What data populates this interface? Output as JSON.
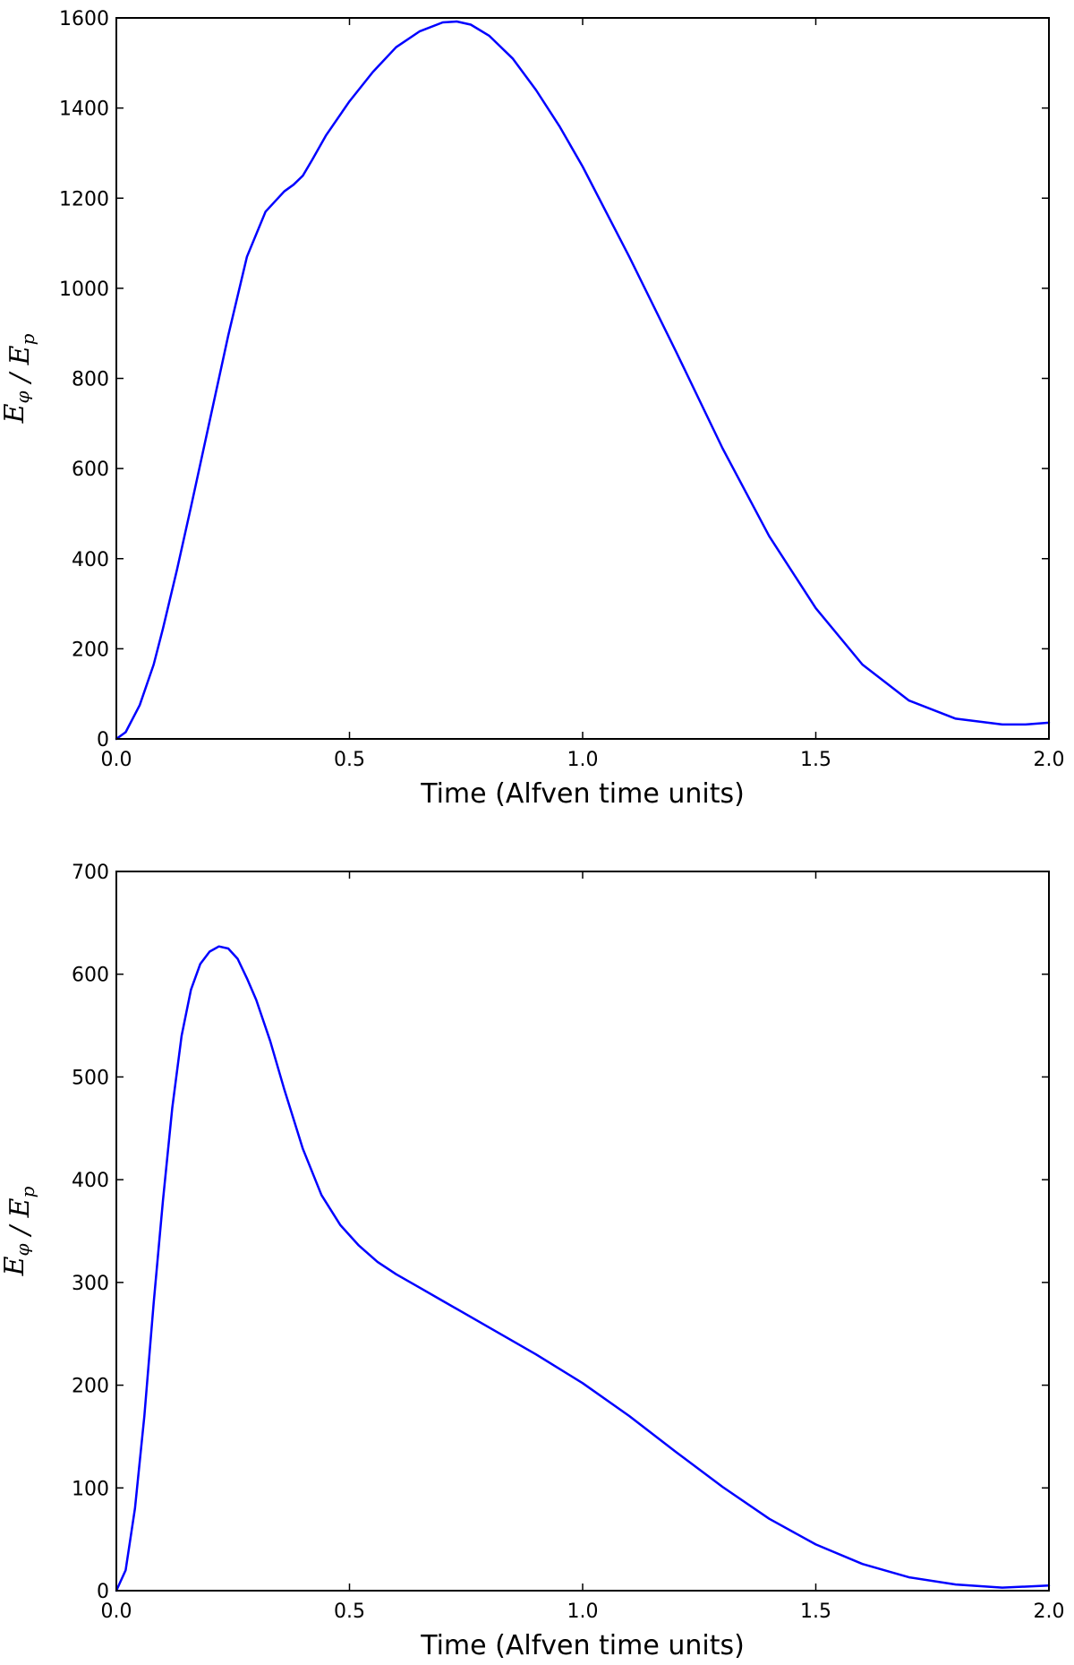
{
  "chart_data": [
    {
      "type": "line",
      "xlabel": "Time (Alfven time units)",
      "ylabel": "E_φ / E_p",
      "xlim": [
        0.0,
        2.0
      ],
      "ylim": [
        0,
        1600
      ],
      "xticks": [
        "0.0",
        "0.5",
        "1.0",
        "1.5",
        "2.0"
      ],
      "xtick_values": [
        0.0,
        0.5,
        1.0,
        1.5,
        2.0
      ],
      "yticks": [
        "0",
        "200",
        "400",
        "600",
        "800",
        "1000",
        "1200",
        "1400",
        "1600"
      ],
      "ytick_values": [
        0,
        200,
        400,
        600,
        800,
        1000,
        1200,
        1400,
        1600
      ],
      "grid": false,
      "series": [
        {
          "color": "#0000ff",
          "x": [
            0.0,
            0.02,
            0.05,
            0.08,
            0.1,
            0.13,
            0.16,
            0.2,
            0.24,
            0.28,
            0.32,
            0.36,
            0.38,
            0.4,
            0.42,
            0.45,
            0.5,
            0.55,
            0.6,
            0.65,
            0.7,
            0.73,
            0.76,
            0.8,
            0.85,
            0.9,
            0.95,
            1.0,
            1.1,
            1.2,
            1.3,
            1.4,
            1.5,
            1.6,
            1.7,
            1.8,
            1.9,
            1.95,
            2.0
          ],
          "y": [
            0,
            15,
            75,
            165,
            245,
            375,
            515,
            705,
            895,
            1070,
            1170,
            1215,
            1230,
            1250,
            1285,
            1340,
            1415,
            1480,
            1535,
            1570,
            1590,
            1592,
            1585,
            1560,
            1510,
            1440,
            1360,
            1270,
            1070,
            860,
            645,
            450,
            290,
            165,
            85,
            45,
            32,
            32,
            36
          ]
        }
      ]
    },
    {
      "type": "line",
      "xlabel": "Time (Alfven time units)",
      "ylabel": "E_φ / E_p",
      "xlim": [
        0.0,
        2.0
      ],
      "ylim": [
        0,
        700
      ],
      "xticks": [
        "0.0",
        "0.5",
        "1.0",
        "1.5",
        "2.0"
      ],
      "xtick_values": [
        0.0,
        0.5,
        1.0,
        1.5,
        2.0
      ],
      "yticks": [
        "0",
        "100",
        "200",
        "300",
        "400",
        "500",
        "600",
        "700"
      ],
      "ytick_values": [
        0,
        100,
        200,
        300,
        400,
        500,
        600,
        700
      ],
      "grid": false,
      "series": [
        {
          "color": "#0000ff",
          "x": [
            0.0,
            0.02,
            0.04,
            0.06,
            0.08,
            0.1,
            0.12,
            0.14,
            0.16,
            0.18,
            0.2,
            0.22,
            0.24,
            0.26,
            0.28,
            0.3,
            0.33,
            0.36,
            0.4,
            0.44,
            0.48,
            0.52,
            0.56,
            0.6,
            0.65,
            0.7,
            0.8,
            0.9,
            1.0,
            1.1,
            1.2,
            1.3,
            1.4,
            1.5,
            1.6,
            1.7,
            1.8,
            1.9,
            2.0
          ],
          "y": [
            0,
            20,
            80,
            170,
            280,
            380,
            470,
            540,
            585,
            610,
            622,
            627,
            625,
            615,
            596,
            575,
            535,
            488,
            430,
            385,
            356,
            336,
            320,
            308,
            295,
            282,
            256,
            230,
            202,
            170,
            135,
            101,
            70,
            45,
            26,
            13,
            6,
            3,
            5
          ]
        }
      ]
    }
  ]
}
